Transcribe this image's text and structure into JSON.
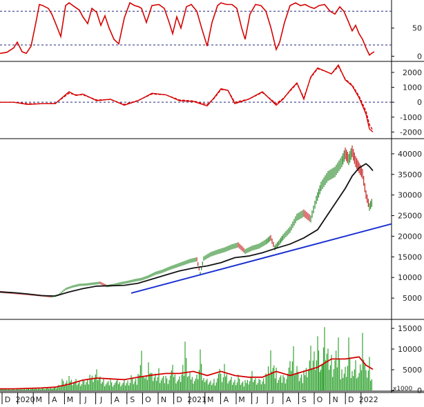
{
  "chart_data": [
    {
      "panel": "stochastic",
      "type": "line",
      "ylim": [
        -8,
        100
      ],
      "y_ticks": [
        0,
        50
      ],
      "reference_lines": [
        20,
        80
      ],
      "series": [
        {
          "color": "#d40000",
          "x": [
            0,
            10,
            20,
            25,
            32,
            38,
            45,
            52,
            57,
            62,
            70,
            75,
            80,
            88,
            95,
            100,
            108,
            115,
            120,
            127,
            133,
            140,
            146,
            152,
            158,
            165,
            172,
            180,
            188,
            195,
            201,
            205,
            212,
            220,
            230,
            238,
            245,
            250,
            256,
            262,
            270,
            277,
            285,
            292,
            300,
            307,
            315,
            320,
            328,
            336,
            343,
            350,
            355,
            362,
            370,
            378,
            385,
            392,
            400,
            405,
            412,
            420,
            428,
            435,
            442,
            448,
            455,
            462,
            470,
            478,
            485,
            492,
            498,
            505,
            510,
            515,
            520,
            525,
            530,
            535,
            538,
            542
          ],
          "y": [
            5,
            7,
            15,
            25,
            8,
            5,
            18,
            60,
            92,
            90,
            85,
            75,
            60,
            35,
            90,
            95,
            88,
            82,
            70,
            58,
            85,
            78,
            55,
            72,
            50,
            30,
            22,
            68,
            95,
            90,
            88,
            85,
            60,
            90,
            92,
            85,
            60,
            40,
            70,
            50,
            88,
            92,
            80,
            50,
            18,
            60,
            90,
            95,
            92,
            92,
            85,
            50,
            30,
            75,
            92,
            90,
            80,
            52,
            12,
            25,
            60,
            90,
            95,
            90,
            92,
            88,
            85,
            90,
            92,
            80,
            75,
            88,
            80,
            60,
            45,
            55,
            40,
            30,
            15,
            2,
            5,
            8
          ]
        }
      ]
    },
    {
      "panel": "macd",
      "type": "line",
      "ylim": [
        -2400,
        2600
      ],
      "y_ticks": [
        2000,
        1000,
        0,
        -1000,
        -2000
      ],
      "reference_lines": [
        0
      ],
      "series": [
        {
          "color": "#d40000",
          "x": [
            0,
            20,
            40,
            60,
            80,
            100,
            110,
            120,
            140,
            160,
            180,
            200,
            220,
            240,
            260,
            280,
            300,
            310,
            320,
            330,
            340,
            360,
            380,
            400,
            410,
            420,
            430,
            440,
            450,
            460,
            470,
            480,
            490,
            500,
            510,
            520,
            530,
            535,
            540
          ],
          "y": [
            0,
            0,
            -150,
            -100,
            -100,
            700,
            450,
            550,
            100,
            200,
            -200,
            100,
            600,
            500,
            100,
            50,
            -250,
            300,
            900,
            800,
            -100,
            200,
            700,
            -200,
            200,
            800,
            1300,
            200,
            1700,
            2300,
            2100,
            1900,
            2500,
            1500,
            1100,
            300,
            -800,
            -1800,
            -2000
          ]
        },
        {
          "color": "#d40000",
          "dashed": true,
          "x": [
            0,
            20,
            40,
            60,
            80,
            100,
            110,
            120,
            140,
            160,
            180,
            200,
            220,
            240,
            260,
            280,
            300,
            310,
            320,
            330,
            340,
            360,
            380,
            400,
            410,
            420,
            430,
            440,
            450,
            460,
            470,
            480,
            490,
            500,
            510,
            520,
            530,
            535,
            540
          ],
          "y": [
            0,
            0,
            -100,
            -100,
            -80,
            600,
            500,
            500,
            150,
            180,
            -150,
            120,
            550,
            500,
            150,
            80,
            -150,
            250,
            850,
            800,
            0,
            200,
            650,
            -100,
            250,
            750,
            1250,
            300,
            1650,
            2250,
            2100,
            1900,
            2400,
            1550,
            1150,
            400,
            -600,
            -1500,
            -1900
          ]
        }
      ]
    },
    {
      "panel": "price",
      "type": "line",
      "ylim": [
        0,
        43000
      ],
      "y_ticks": [
        40000,
        35000,
        30000,
        25000,
        20000,
        15000,
        10000,
        5000
      ],
      "series": [
        {
          "kind": "price",
          "color": "#2a8a2a",
          "x": [
            0,
            20,
            40,
            60,
            75,
            85,
            95,
            105,
            115,
            125,
            135,
            145,
            155,
            165,
            175,
            185,
            195,
            205,
            215,
            225,
            235,
            245,
            255,
            265,
            275,
            285,
            290,
            295,
            305,
            315,
            325,
            335,
            345,
            355,
            365,
            375,
            385,
            392,
            398,
            405,
            410,
            420,
            430,
            440,
            450,
            458,
            465,
            475,
            485,
            495,
            500,
            505,
            510,
            515,
            520,
            525,
            530,
            535,
            540
          ],
          "y": [
            6500,
            6200,
            5900,
            5600,
            5300,
            5800,
            7200,
            7800,
            8200,
            8300,
            8500,
            8700,
            7900,
            8200,
            8600,
            8900,
            9300,
            9600,
            10200,
            11000,
            11500,
            12200,
            12800,
            13400,
            14000,
            14400,
            11000,
            14600,
            15600,
            16200,
            16700,
            17400,
            17900,
            16300,
            17100,
            17600,
            18600,
            19600,
            17200,
            18600,
            19800,
            21600,
            24600,
            25600,
            24200,
            28800,
            32100,
            34600,
            35600,
            38100,
            40100,
            38600,
            40600,
            38100,
            36600,
            35100,
            30100,
            27100,
            28600
          ]
        },
        {
          "kind": "moving-average",
          "color": "#111111",
          "x": [
            0,
            20,
            40,
            60,
            80,
            100,
            120,
            140,
            160,
            180,
            200,
            220,
            240,
            260,
            280,
            300,
            320,
            340,
            360,
            380,
            400,
            420,
            440,
            460,
            480,
            500,
            510,
            520,
            530,
            535,
            540
          ],
          "y": [
            6500,
            6300,
            6000,
            5600,
            5500,
            6500,
            7300,
            7900,
            8000,
            8100,
            8600,
            9600,
            10600,
            11600,
            12300,
            12800,
            13600,
            14800,
            15200,
            16000,
            17100,
            18100,
            19600,
            21600,
            26600,
            31600,
            34600,
            36600,
            37600,
            36900,
            35900
          ]
        },
        {
          "kind": "trendline",
          "color": "#1a2fd0",
          "x": [
            190,
            567
          ],
          "y": [
            6200,
            23000
          ]
        }
      ]
    },
    {
      "panel": "volume",
      "type": "bar",
      "unit_label": "x1000",
      "ylim": [
        0,
        16500
      ],
      "y_ticks": [
        15000,
        10000,
        5000,
        0
      ],
      "x": [
        0,
        20,
        40,
        60,
        80,
        90,
        100,
        110,
        120,
        130,
        140,
        150,
        160,
        170,
        180,
        190,
        200,
        205,
        210,
        215,
        220,
        230,
        240,
        250,
        260,
        268,
        275,
        285,
        290,
        295,
        300,
        310,
        318,
        325,
        335,
        345,
        355,
        365,
        375,
        385,
        392,
        400,
        410,
        420,
        425,
        430,
        440,
        450,
        460,
        466,
        470,
        480,
        490,
        495,
        500,
        505,
        510,
        515,
        520,
        525,
        530,
        535,
        540
      ],
      "volume": [
        500,
        400,
        600,
        700,
        900,
        2800,
        3500,
        2800,
        2600,
        3800,
        5100,
        2900,
        2600,
        2700,
        2800,
        3700,
        4000,
        9600,
        2900,
        6800,
        4200,
        5400,
        3500,
        6200,
        3400,
        11800,
        4300,
        3800,
        9900,
        3000,
        2800,
        2800,
        5200,
        6400,
        3300,
        3800,
        2500,
        4700,
        2800,
        4100,
        9700,
        5500,
        3700,
        7100,
        10700,
        5900,
        4900,
        10800,
        13100,
        6300,
        15300,
        8600,
        12800,
        5100,
        5700,
        12800,
        4700,
        7300,
        4200,
        13900,
        4900,
        8100,
        3900
      ],
      "volume_ma_x": [
        0,
        20,
        40,
        60,
        80,
        100,
        120,
        140,
        160,
        180,
        200,
        220,
        240,
        260,
        280,
        300,
        320,
        340,
        360,
        380,
        400,
        420,
        440,
        460,
        480,
        500,
        520,
        530,
        540
      ],
      "volume_ma": [
        400,
        400,
        500,
        600,
        800,
        1500,
        2500,
        3000,
        2800,
        2600,
        3200,
        3700,
        4100,
        4100,
        4600,
        3600,
        4600,
        3600,
        3200,
        3200,
        4600,
        3600,
        4600,
        5600,
        7600,
        7600,
        8100,
        6100,
        5100
      ]
    }
  ],
  "x_axis_labels": [
    "D",
    "2020",
    "M",
    "A",
    "M",
    "J",
    "J",
    "A",
    "S",
    "O",
    "N",
    "D",
    "2021",
    "M",
    "A",
    "M",
    "J",
    "J",
    "A",
    "S",
    "O",
    "N",
    "D",
    "2022"
  ]
}
